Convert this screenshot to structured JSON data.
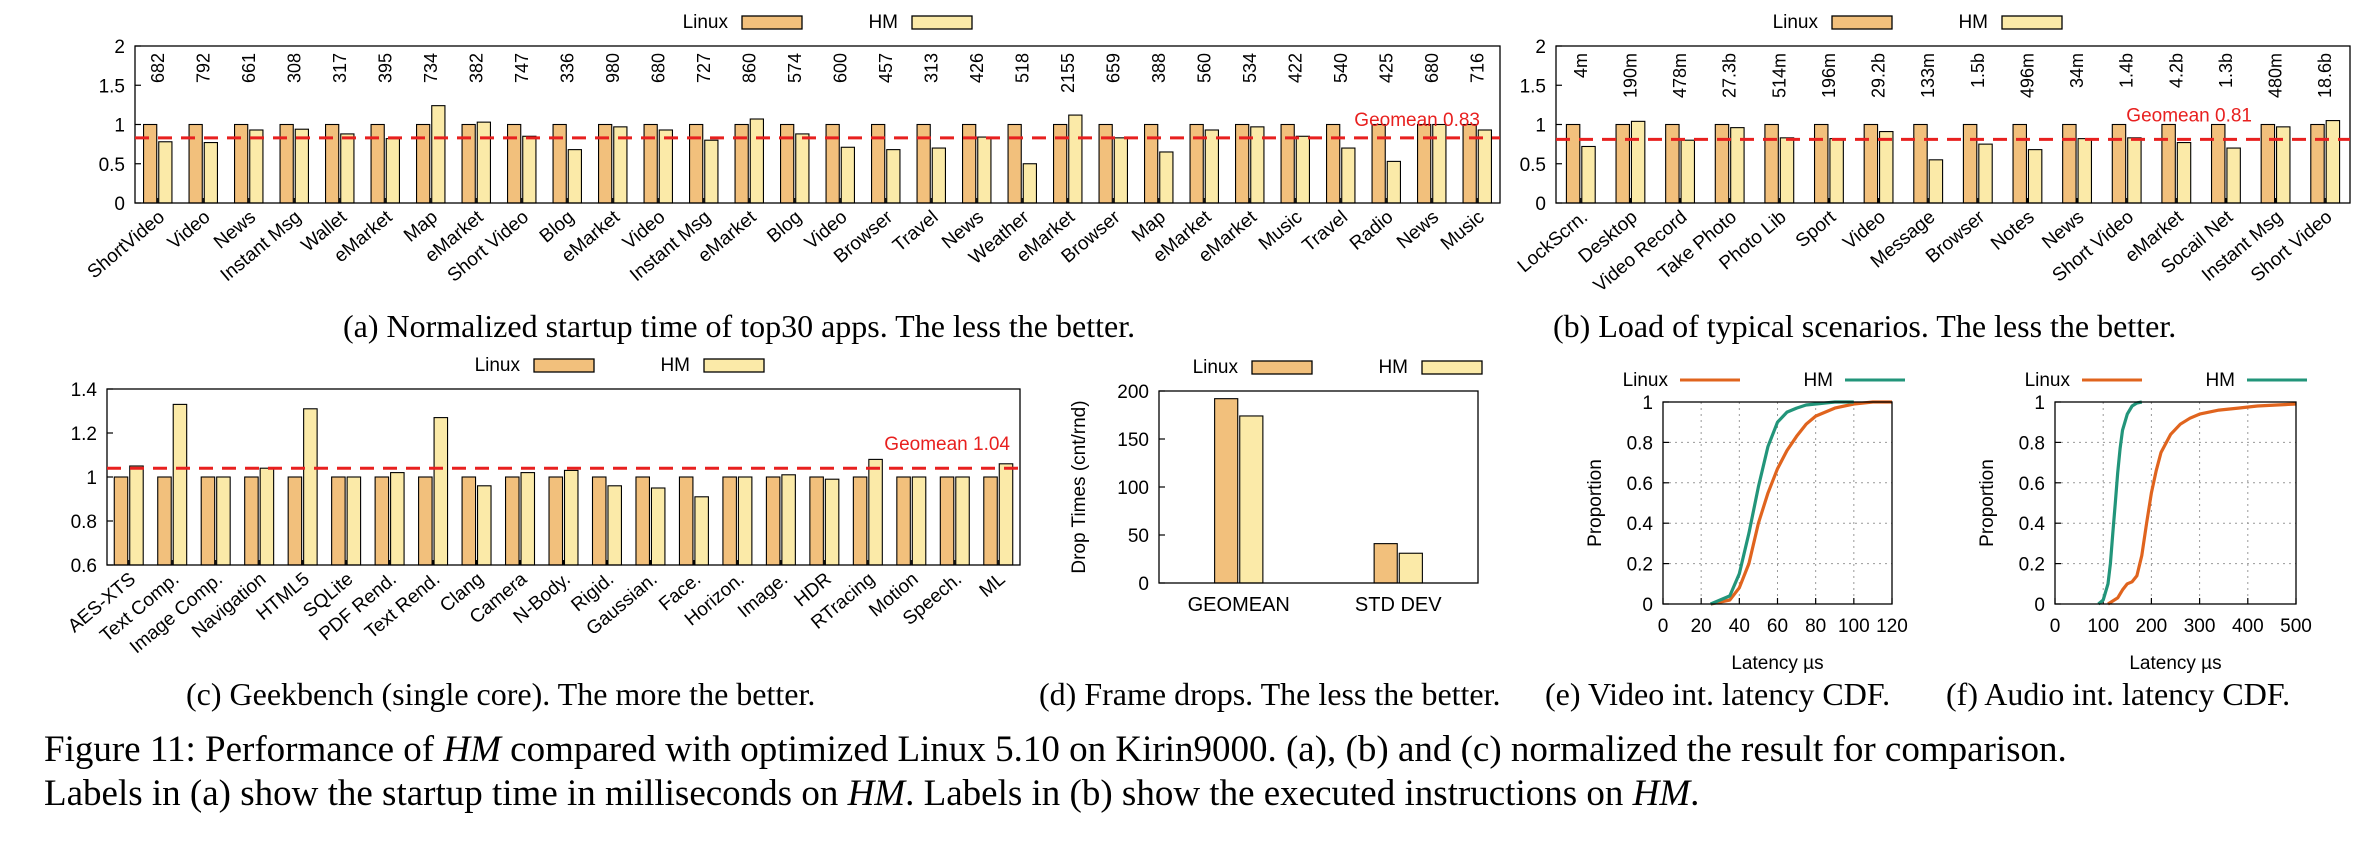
{
  "colors": {
    "linux": "#f2c07c",
    "hm": "#fbeaa8",
    "linux_line": "#e0641e",
    "hm_line": "#22957a",
    "geomean": "#e8201f",
    "grid": "#999999",
    "axis": "#000000"
  },
  "legend": {
    "linux": "Linux",
    "hm": "HM"
  },
  "captions": {
    "a": "(a) Normalized startup time of top30 apps. The less the better.",
    "b": "(b) Load of typical scenarios. The less the better.",
    "c": "(c) Geekbench (single core). The more the better.",
    "d": "(d) Frame drops. The less the better.",
    "e": "(e) Video int. latency CDF.",
    "f": "(f) Audio int. latency CDF.",
    "figure_line1_a": "Figure 11: Performance of ",
    "figure_line1_b": "HM",
    "figure_line1_c": " compared with optimized Linux 5.10 on Kirin9000. (a), (b) and (c) normalized the result for comparison.",
    "figure_line2_a": "Labels in (a) show the startup time in milliseconds on ",
    "figure_line2_b": "HM",
    "figure_line2_c": ". Labels in (b) show the executed instructions on ",
    "figure_line2_d": "HM",
    "figure_line2_e": "."
  },
  "chart_data": [
    {
      "id": "a",
      "type": "bar",
      "ylim": [
        0,
        2
      ],
      "yticks": [
        "0",
        "0.5",
        "1",
        "1.5",
        "2"
      ],
      "geomean": {
        "label": "Geomean 0.83",
        "value": 0.83
      },
      "categories": [
        "ShortVideo",
        "Video",
        "News",
        "Instant Msg",
        "Wallet",
        "eMarket",
        "Map",
        "eMarket",
        "Short Video",
        "Blog",
        "eMarket",
        "Video",
        "Instant Msg",
        "eMarket",
        "Blog",
        "Video",
        "Browser",
        "Travel",
        "News",
        "Weather",
        "eMarket",
        "Browser",
        "Map",
        "eMarket",
        "eMarket",
        "Music",
        "Travel",
        "Radio",
        "News",
        "Music"
      ],
      "bar_labels": [
        "682",
        "792",
        "661",
        "308",
        "317",
        "395",
        "734",
        "382",
        "747",
        "336",
        "980",
        "680",
        "727",
        "860",
        "574",
        "600",
        "457",
        "313",
        "426",
        "518",
        "2155",
        "659",
        "388",
        "560",
        "534",
        "422",
        "540",
        "425",
        "680",
        "716"
      ],
      "series": [
        {
          "name": "Linux",
          "values": [
            1,
            1,
            1,
            1,
            1,
            1,
            1,
            1,
            1,
            1,
            1,
            1,
            1,
            1,
            1,
            1,
            1,
            1,
            1,
            1,
            1,
            1,
            1,
            1,
            1,
            1,
            1,
            1,
            1,
            1
          ]
        },
        {
          "name": "HM",
          "values": [
            0.78,
            0.77,
            0.93,
            0.94,
            0.88,
            0.82,
            1.24,
            1.03,
            0.85,
            0.68,
            0.97,
            0.93,
            0.8,
            1.07,
            0.88,
            0.71,
            0.68,
            0.7,
            0.84,
            0.5,
            1.12,
            0.83,
            0.65,
            0.93,
            0.97,
            0.85,
            0.7,
            0.53,
            1.0,
            0.93
          ]
        }
      ]
    },
    {
      "id": "b",
      "type": "bar",
      "ylim": [
        0,
        2
      ],
      "yticks": [
        "0",
        "0.5",
        "1",
        "1.5",
        "2"
      ],
      "geomean": {
        "label": "Geomean 0.81",
        "value": 0.81
      },
      "categories": [
        "LockScrn.",
        "Desktop",
        "Video Record",
        "Take Photo",
        "Photo Lib",
        "Sport",
        "Video",
        "Message",
        "Browser",
        "Notes",
        "News",
        "Short Video",
        "eMarket",
        "Socail Net",
        "Instant Msg",
        "Short Video"
      ],
      "bar_labels": [
        "4m",
        "190m",
        "478m",
        "27.3b",
        "514m",
        "196m",
        "29.2b",
        "133m",
        "1.5b",
        "496m",
        "34m",
        "1.4b",
        "4.2b",
        "1.3b",
        "480m",
        "18.6b"
      ],
      "series": [
        {
          "name": "Linux",
          "values": [
            1,
            1,
            1,
            1,
            1,
            1,
            1,
            1,
            1,
            1,
            1,
            1,
            1,
            1,
            1,
            1
          ]
        },
        {
          "name": "HM",
          "values": [
            0.72,
            1.04,
            0.8,
            0.96,
            0.83,
            0.82,
            0.91,
            0.55,
            0.75,
            0.68,
            0.82,
            0.83,
            0.77,
            0.7,
            0.97,
            1.05
          ]
        }
      ]
    },
    {
      "id": "c",
      "type": "bar",
      "ylim": [
        0.6,
        1.4
      ],
      "yticks": [
        "0.6",
        "0.8",
        "1",
        "1.2",
        "1.4"
      ],
      "geomean": {
        "label": "Geomean 1.04",
        "value": 1.04
      },
      "categories": [
        "AES-XTS",
        "Text Comp.",
        "Image Comp.",
        "Navigation",
        "HTML5",
        "SQLite",
        "PDF Rend.",
        "Text Rend.",
        "Clang",
        "Camera",
        "N-Body.",
        "Rigid.",
        "Gaussian.",
        "Face.",
        "Horizon.",
        "Image.",
        "HDR",
        "RTracing",
        "Motion",
        "Speech.",
        "ML"
      ],
      "series": [
        {
          "name": "Linux",
          "values": [
            1,
            1,
            1,
            1,
            1,
            1,
            1,
            1,
            1,
            1,
            1,
            1,
            1,
            1,
            1,
            1,
            1,
            1,
            1,
            1,
            1
          ]
        },
        {
          "name": "HM",
          "values": [
            1.05,
            1.33,
            1.0,
            1.04,
            1.31,
            1.0,
            1.02,
            1.27,
            0.96,
            1.02,
            1.03,
            0.96,
            0.95,
            0.91,
            1.0,
            1.01,
            0.99,
            1.08,
            1.0,
            1.0,
            1.06
          ]
        }
      ]
    },
    {
      "id": "d",
      "type": "bar",
      "ylabel": "Drop Times (cnt/rnd)",
      "ylim": [
        0,
        200
      ],
      "yticks": [
        "0",
        "50",
        "100",
        "150",
        "200"
      ],
      "categories": [
        "GEOMEAN",
        "STD DEV"
      ],
      "series": [
        {
          "name": "Linux",
          "values": [
            192,
            41
          ]
        },
        {
          "name": "HM",
          "values": [
            174,
            31
          ]
        }
      ]
    },
    {
      "id": "e",
      "type": "line",
      "xlabel": "Latency µs",
      "ylabel": "Proportion",
      "xlim": [
        0,
        120
      ],
      "ylim": [
        0,
        1
      ],
      "xticks": [
        "0",
        "20",
        "40",
        "60",
        "80",
        "100",
        "120"
      ],
      "yticks": [
        "0",
        "0.2",
        "0.4",
        "0.6",
        "0.8",
        "1"
      ],
      "series": [
        {
          "name": "Linux",
          "x": [
            25,
            35,
            40,
            45,
            50,
            55,
            60,
            65,
            70,
            75,
            80,
            90,
            100,
            110,
            120
          ],
          "y": [
            0,
            0.02,
            0.08,
            0.2,
            0.4,
            0.55,
            0.67,
            0.76,
            0.83,
            0.89,
            0.93,
            0.97,
            0.99,
            1.0,
            1.0
          ]
        },
        {
          "name": "HM",
          "x": [
            25,
            35,
            40,
            45,
            50,
            55,
            60,
            65,
            70,
            75,
            80,
            90,
            100
          ],
          "y": [
            0,
            0.04,
            0.15,
            0.35,
            0.58,
            0.78,
            0.9,
            0.95,
            0.97,
            0.985,
            0.99,
            1.0,
            1.0
          ]
        }
      ]
    },
    {
      "id": "f",
      "type": "line",
      "xlabel": "Latency µs",
      "ylabel": "Proportion",
      "xlim": [
        0,
        500
      ],
      "ylim": [
        0,
        1
      ],
      "xticks": [
        "0",
        "100",
        "200",
        "300",
        "400",
        "500"
      ],
      "yticks": [
        "0",
        "0.2",
        "0.4",
        "0.6",
        "0.8",
        "1"
      ],
      "series": [
        {
          "name": "Linux",
          "x": [
            110,
            130,
            140,
            150,
            160,
            170,
            180,
            190,
            200,
            210,
            220,
            240,
            260,
            280,
            300,
            340,
            380,
            420,
            460,
            500
          ],
          "y": [
            0,
            0.03,
            0.07,
            0.1,
            0.11,
            0.14,
            0.24,
            0.4,
            0.55,
            0.66,
            0.75,
            0.84,
            0.89,
            0.92,
            0.94,
            0.96,
            0.97,
            0.98,
            0.985,
            0.99
          ]
        },
        {
          "name": "HM",
          "x": [
            90,
            100,
            110,
            115,
            120,
            125,
            130,
            135,
            140,
            150,
            160,
            170,
            180
          ],
          "y": [
            0,
            0.02,
            0.1,
            0.2,
            0.35,
            0.5,
            0.65,
            0.77,
            0.86,
            0.94,
            0.98,
            0.995,
            1.0
          ]
        }
      ]
    }
  ]
}
